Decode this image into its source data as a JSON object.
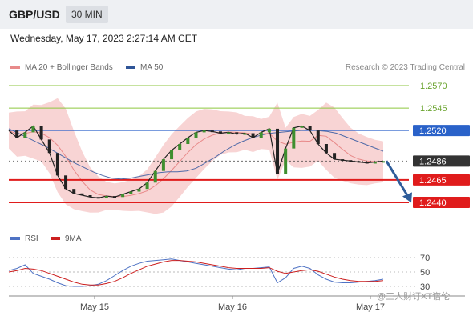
{
  "header": {
    "pair": "GBP/USD",
    "timeframe": "30 MIN"
  },
  "datetime": "Wednesday, May 17, 2023 2:27:14 AM CET",
  "legend": [
    {
      "label": "MA 20 + Bollinger Bands",
      "color": "#e88a8a"
    },
    {
      "label": "MA 50",
      "color": "#2f5597"
    }
  ],
  "credit": "Research © 2023 Trading Central",
  "rsi_legend": [
    {
      "label": "RSI",
      "color": "#4f73c4"
    },
    {
      "label": "9MA",
      "color": "#cc1f1f"
    }
  ],
  "watermark": "@三人财订XT谱伦",
  "chart_data": {
    "type": "line",
    "x_ticks": [
      "May 15",
      "May 16",
      "May 17"
    ],
    "price_levels": [
      {
        "value": 1.257,
        "label": "1.2570",
        "kind": "resistance",
        "color": "#8dc63f"
      },
      {
        "value": 1.2545,
        "label": "1.2545",
        "kind": "resistance",
        "color": "#8dc63f"
      },
      {
        "value": 1.252,
        "label": "1.2520",
        "kind": "pivot",
        "color": "#2a62c9"
      },
      {
        "value": 1.2486,
        "label": "1.2486",
        "kind": "current",
        "color": "#333333"
      },
      {
        "value": 1.2465,
        "label": "1.2465",
        "kind": "support",
        "color": "#e01c1c"
      },
      {
        "value": 1.244,
        "label": "1.2440",
        "kind": "support",
        "color": "#e01c1c"
      }
    ],
    "price_series": [
      1.252,
      1.2512,
      1.2518,
      1.2525,
      1.251,
      1.2495,
      1.247,
      1.2455,
      1.245,
      1.2448,
      1.2446,
      1.2445,
      1.2447,
      1.2446,
      1.2449,
      1.2452,
      1.2455,
      1.2462,
      1.2475,
      1.2488,
      1.2498,
      1.2505,
      1.2512,
      1.2518,
      1.252,
      1.2519,
      1.2517,
      1.2518,
      1.2516,
      1.2517,
      1.2512,
      1.2518,
      1.2522,
      1.2472,
      1.25,
      1.2523,
      1.2525,
      1.252,
      1.2505,
      1.2495,
      1.2488,
      1.2487,
      1.2486,
      1.2485,
      1.2484,
      1.2485,
      1.2486
    ],
    "ma50_series": [
      1.2522,
      1.2517,
      1.2512,
      1.2507,
      1.2502,
      1.2496,
      1.249,
      1.2484,
      1.2479,
      1.2474,
      1.247,
      1.2467,
      1.2466,
      1.2467,
      1.2469,
      1.2471,
      1.2473,
      1.2474,
      1.2474,
      1.2475,
      1.2478,
      1.2484,
      1.249,
      1.2497,
      1.2503,
      1.2508,
      1.2512,
      1.2515,
      1.2517,
      1.2518,
      1.2519,
      1.252,
      1.2521,
      1.252,
      1.2519,
      1.2517,
      1.2513,
      1.2509,
      1.2505,
      1.2501,
      1.2497
    ],
    "forecast": {
      "from": 1.2486,
      "to": 1.2445
    },
    "rsi": {
      "levels": [
        70,
        50,
        30
      ],
      "rsi_series": [
        52,
        55,
        60,
        48,
        44,
        40,
        35,
        31,
        30,
        30,
        31,
        33,
        38,
        45,
        52,
        58,
        62,
        65,
        66,
        67,
        68,
        66,
        64,
        62,
        60,
        58,
        56,
        54,
        53,
        55,
        55,
        56,
        57,
        35,
        42,
        55,
        58,
        55,
        46,
        40,
        36,
        35,
        35,
        36,
        37,
        38,
        40
      ],
      "ma_series": [
        50,
        52,
        55,
        54,
        52,
        48,
        44,
        40,
        36,
        33,
        32,
        32,
        34,
        37,
        42,
        48,
        53,
        58,
        61,
        64,
        66,
        66,
        65,
        64,
        62,
        60,
        58,
        56,
        55,
        55,
        55,
        55,
        56,
        51,
        48,
        50,
        52,
        53,
        51,
        47,
        43,
        40,
        38,
        37,
        37,
        37,
        38
      ]
    }
  }
}
